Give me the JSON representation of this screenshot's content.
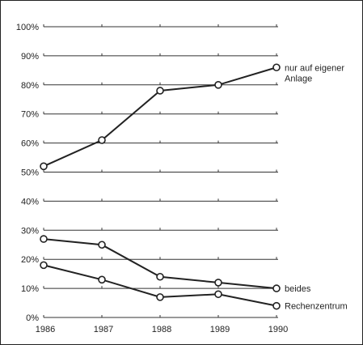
{
  "chart_data": {
    "type": "line",
    "title": "",
    "xlabel": "",
    "ylabel": "",
    "x": [
      "1986",
      "1987",
      "1988",
      "1989",
      "1990"
    ],
    "ylim": [
      0,
      100
    ],
    "y_ticks": [
      "0%",
      "10%",
      "20%",
      "30%",
      "40%",
      "50%",
      "60%",
      "70%",
      "80%",
      "90%",
      "100%"
    ],
    "grid": true,
    "series": [
      {
        "name_lines": [
          "nur auf eigener",
          "Anlage"
        ],
        "values": [
          52,
          61,
          78,
          80,
          86
        ]
      },
      {
        "name_lines": [
          "beides"
        ],
        "values": [
          27,
          25,
          14,
          12,
          10
        ]
      },
      {
        "name_lines": [
          "Rechenzentrum"
        ],
        "values": [
          18,
          13,
          7,
          8,
          4
        ]
      }
    ],
    "line_color": "#222222",
    "marker_fill": "#ffffff"
  }
}
